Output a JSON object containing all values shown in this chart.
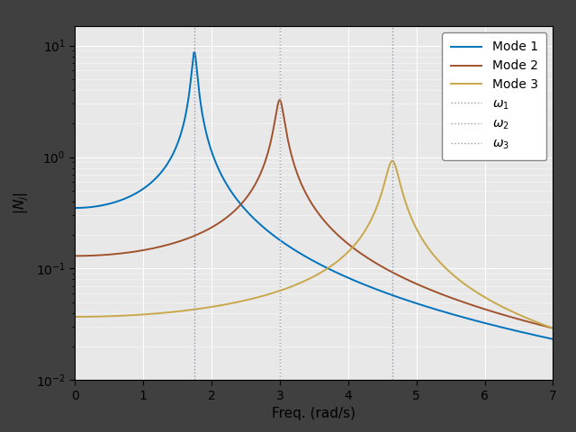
{
  "omega1": 1.75,
  "omega2": 3.0,
  "omega3": 4.65,
  "zeta": 0.02,
  "mode1_color": "#0072BD",
  "mode2_color": "#A0522D",
  "mode3_color": "#C8A84B",
  "vline_color": "#9999AA",
  "xlabel": "Freq. (rad/s)",
  "ylabel": "$|N_j|$",
  "xlim": [
    0,
    7
  ],
  "ylim": [
    0.01,
    15
  ],
  "background_color": "#404040",
  "axes_bg_color": "#E8E8E8",
  "grid_color": "#FFFFFF",
  "legend_labels": [
    "Mode 1",
    "Mode 2",
    "Mode 3"
  ],
  "omega_labels": [
    "$\\omega_1$",
    "$\\omega_2$",
    "$\\omega_3$"
  ],
  "mode1_dc": 0.35,
  "mode2_dc": 0.13,
  "mode3_dc": 0.037,
  "figsize": [
    6.4,
    4.8
  ],
  "dpi": 100
}
